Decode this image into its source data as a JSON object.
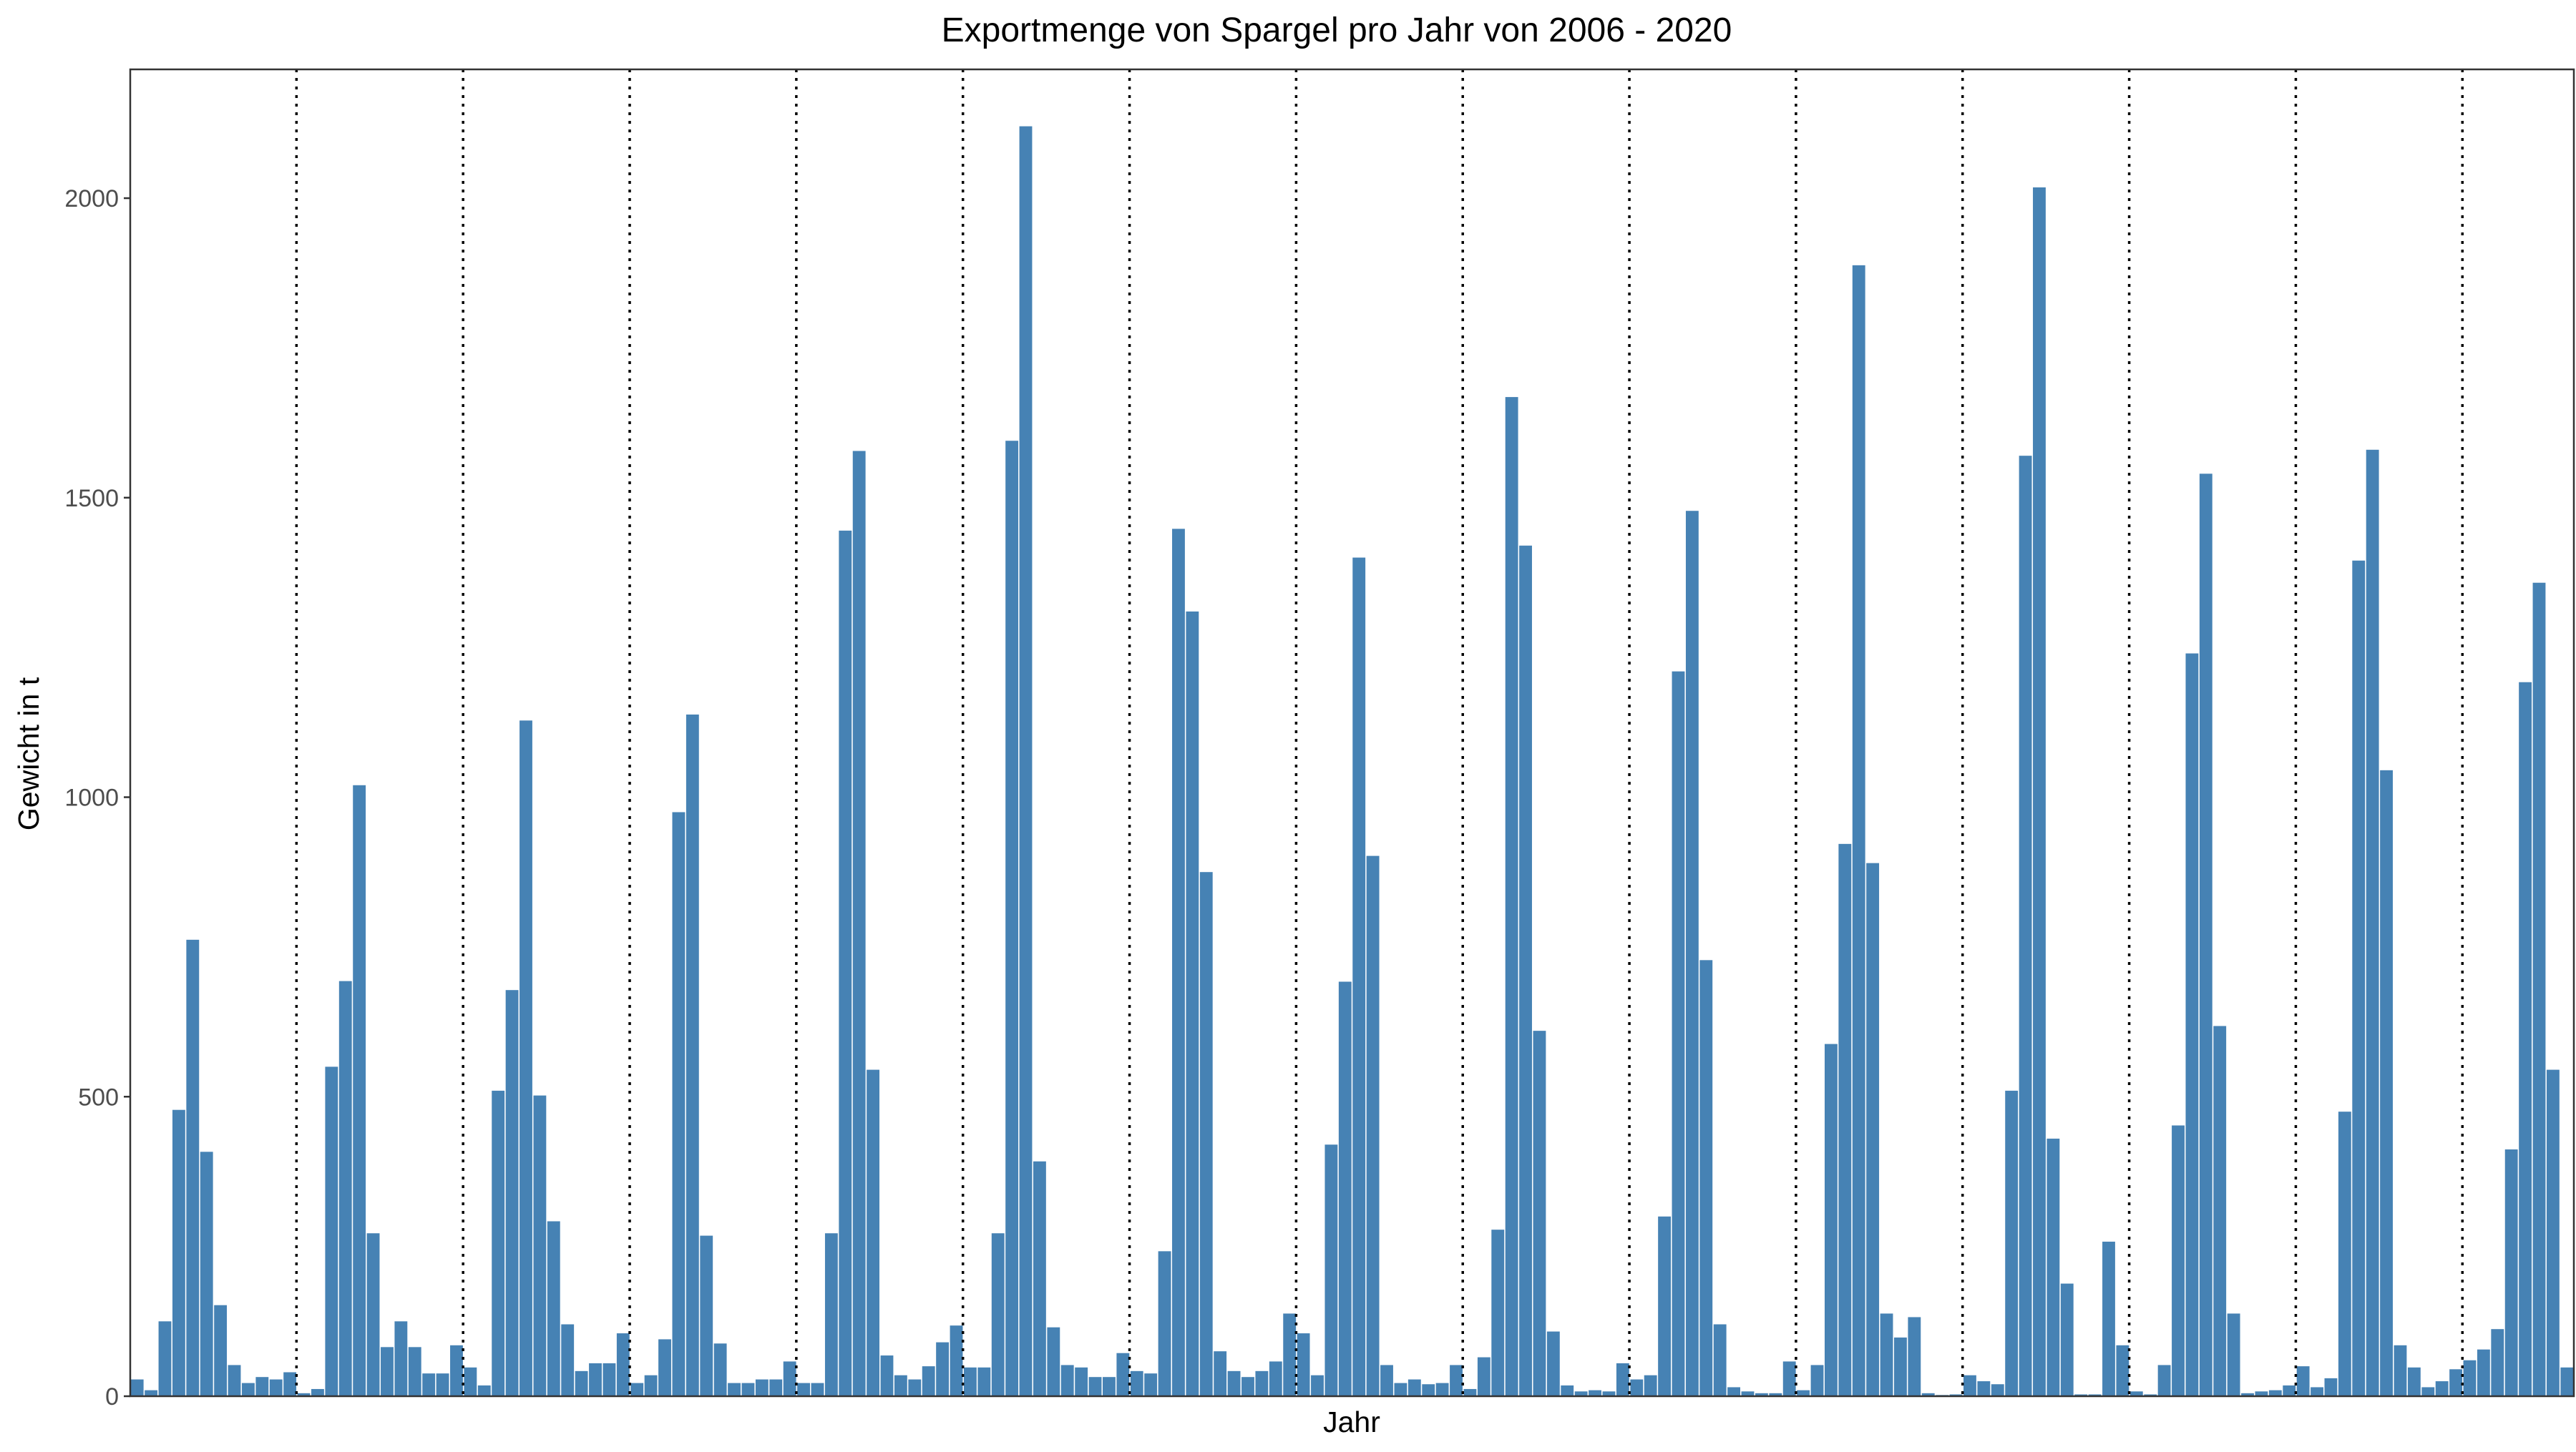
{
  "chart_data": {
    "type": "bar",
    "title": "Exportmenge von Spargel pro Jahr von 2006 - 2020",
    "xlabel": "Jahr",
    "ylabel": "Gewicht in t",
    "ylim": [
      0,
      2215
    ],
    "yticks": [
      0,
      500,
      1000,
      1500,
      2000
    ],
    "grid": false,
    "year_separators": "dotted vertical lines between years",
    "bar_color": "#4682B4",
    "series": [
      {
        "values": [
          28,
          10,
          125,
          478,
          762,
          408,
          152,
          52,
          22,
          32,
          28,
          40,
          5,
          12,
          550,
          693,
          1020,
          272,
          82,
          125,
          82,
          38,
          38,
          85,
          48,
          18,
          510,
          678,
          1128,
          502,
          292,
          120,
          42,
          55,
          55,
          105,
          22,
          35,
          95,
          975,
          1138,
          268,
          88,
          22,
          22,
          28,
          28,
          58,
          22,
          22,
          272,
          1445,
          1578,
          545,
          68,
          35,
          28,
          50,
          90,
          118,
          48,
          48,
          272,
          1595,
          2120,
          392,
          115,
          52,
          48,
          32,
          32,
          72,
          42,
          38,
          242,
          1448,
          1310,
          875,
          75,
          42,
          32,
          42,
          58,
          138,
          105,
          35,
          420,
          692,
          1400,
          902,
          52,
          22,
          28,
          20,
          22,
          52,
          12,
          65,
          278,
          1668,
          1420,
          610,
          108,
          18,
          8,
          10,
          8,
          55,
          28,
          35,
          300,
          1210,
          1478,
          728,
          120,
          15,
          8,
          5,
          5,
          58,
          10,
          52,
          588,
          922,
          1888,
          890,
          138,
          98,
          132,
          5,
          2,
          3,
          35,
          25,
          20,
          510,
          1570,
          2018,
          430,
          188,
          3,
          3,
          258,
          85,
          8,
          3,
          52,
          452,
          1240,
          1540,
          618,
          138,
          5,
          8,
          10,
          18,
          50,
          15,
          30,
          475,
          1395,
          1580,
          1045,
          85,
          48,
          15,
          25,
          45,
          60,
          78,
          112,
          412,
          1192,
          1358,
          545,
          48
        ]
      }
    ]
  }
}
